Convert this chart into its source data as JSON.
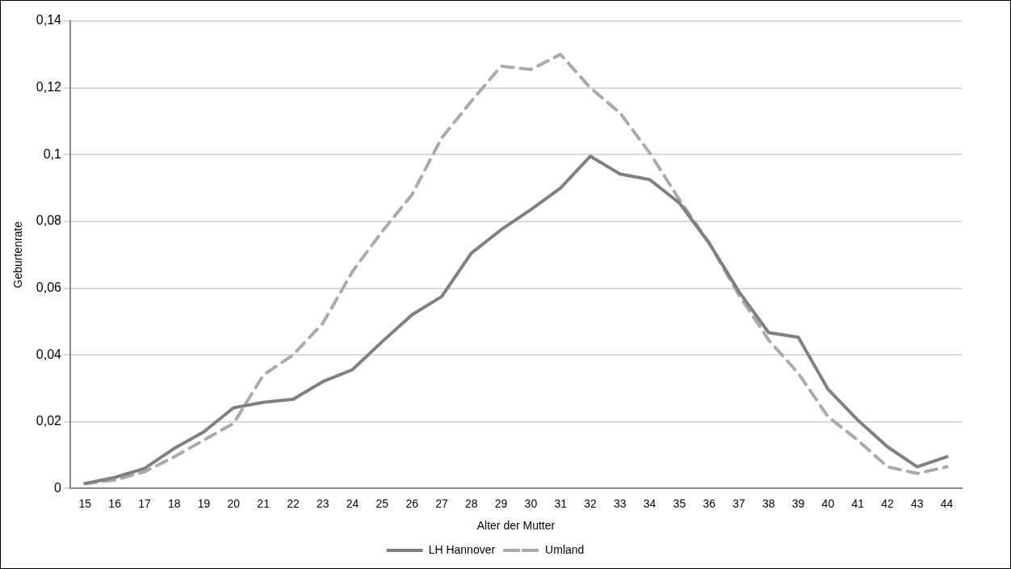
{
  "chart_data": {
    "type": "line",
    "xlabel": "Alter der Mutter",
    "ylabel": "Geburtenrate",
    "categories": [
      "15",
      "16",
      "17",
      "18",
      "19",
      "20",
      "21",
      "22",
      "23",
      "24",
      "25",
      "26",
      "27",
      "28",
      "29",
      "30",
      "31",
      "32",
      "33",
      "34",
      "35",
      "36",
      "37",
      "38",
      "39",
      "40",
      "41",
      "42",
      "43",
      "44"
    ],
    "series": [
      {
        "name": "LH Hannover",
        "color": "#808080",
        "line_style": "solid",
        "values": [
          0.0015,
          0.0033,
          0.006,
          0.012,
          0.017,
          0.0242,
          0.0258,
          0.0267,
          0.032,
          0.0356,
          0.044,
          0.052,
          0.0575,
          0.0705,
          0.0775,
          0.0835,
          0.09,
          0.0995,
          0.0942,
          0.0925,
          0.0855,
          0.0735,
          0.059,
          0.0467,
          0.0453,
          0.0297,
          0.0205,
          0.0125,
          0.0065,
          0.0095
        ]
      },
      {
        "name": "Umland",
        "color": "#aaaaaa",
        "line_style": "dashed",
        "values": [
          0.0015,
          0.0025,
          0.005,
          0.0095,
          0.0145,
          0.0195,
          0.034,
          0.04,
          0.0495,
          0.065,
          0.077,
          0.088,
          0.105,
          0.116,
          0.1265,
          0.1255,
          0.13,
          0.12,
          0.1125,
          0.1005,
          0.0865,
          0.0735,
          0.058,
          0.0445,
          0.0345,
          0.0215,
          0.0145,
          0.0065,
          0.0045,
          0.0065
        ]
      }
    ],
    "ylim": [
      0,
      0.14
    ],
    "yticks": [
      0,
      {
        "value": 0.02,
        "label": "0,02"
      },
      {
        "value": 0.04,
        "label": "0,04"
      },
      {
        "value": 0.06,
        "label": "0,06"
      },
      {
        "value": 0.08,
        "label": "0,08"
      },
      {
        "value": 0.1,
        "label": "0,1"
      },
      {
        "value": 0.12,
        "label": "0,12"
      },
      {
        "value": 0.14,
        "label": "0,14"
      }
    ],
    "grid": "y",
    "legend": "bottom",
    "marker": "none"
  }
}
